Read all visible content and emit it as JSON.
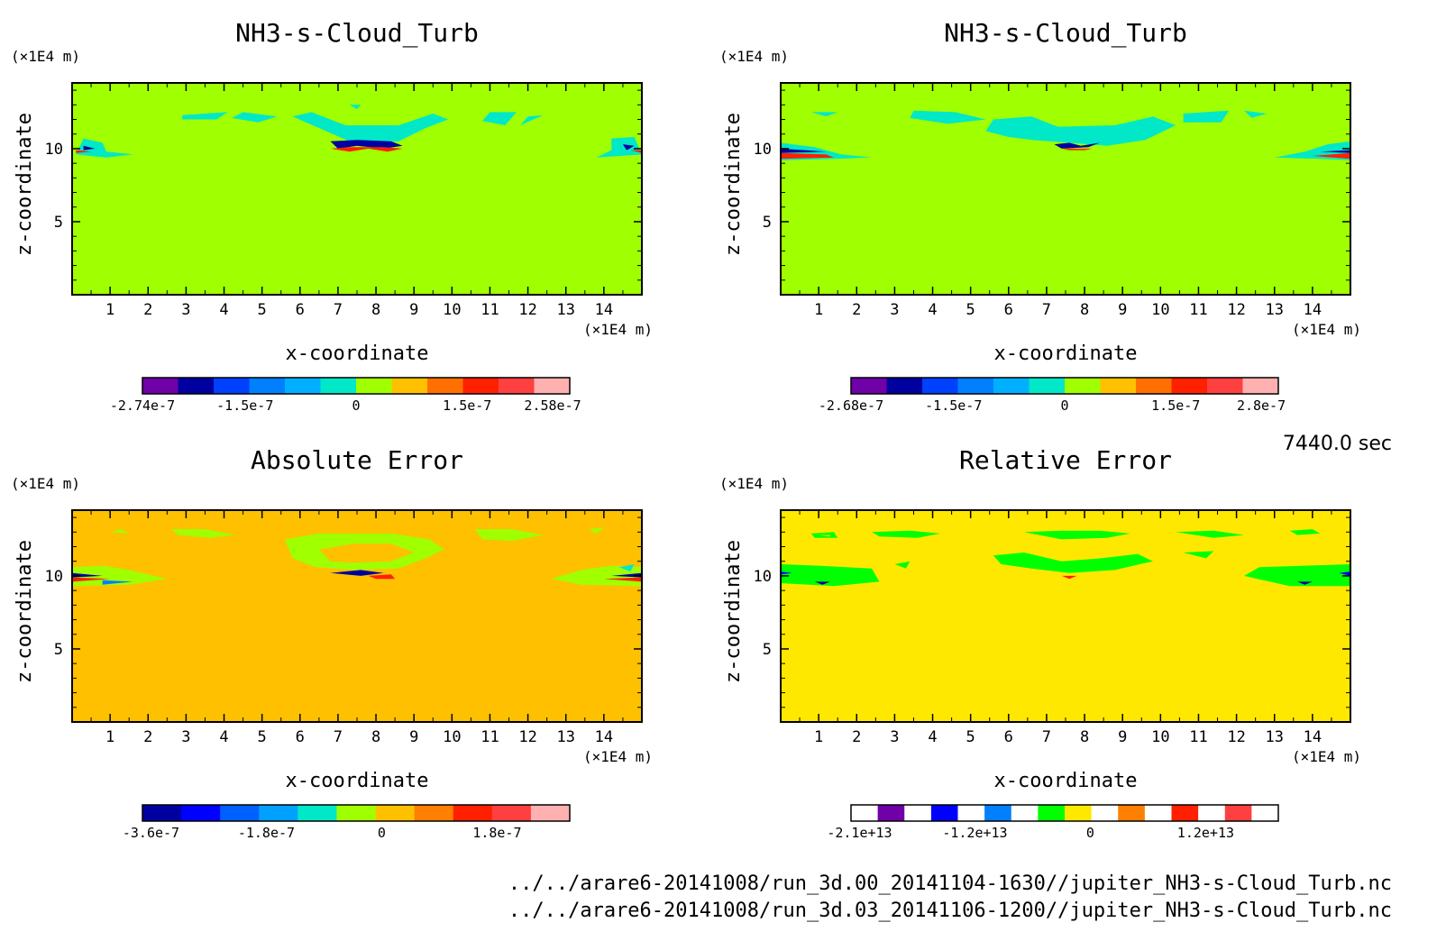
{
  "time_label": "7440.0 sec",
  "footer": {
    "file1": "../../arare6-20141008/run_3d.00_20141104-1630//jupiter_NH3-s-Cloud_Turb.nc",
    "file2": "../../arare6-20141008/run_3d.03_20141106-1200//jupiter_NH3-s-Cloud_Turb.nc"
  },
  "chart_data": [
    {
      "type": "heatmap",
      "title": "NH3-s-Cloud_Turb",
      "xlabel": "x-coordinate",
      "ylabel": "z-coordinate",
      "x_unit": "(×1E4 m)",
      "y_unit": "(×1E4 m)",
      "xlim": [
        0,
        15
      ],
      "ylim": [
        0,
        14.5
      ],
      "x_ticks": [
        "1",
        "2",
        "3",
        "4",
        "5",
        "6",
        "7",
        "8",
        "9",
        "10",
        "11",
        "12",
        "13",
        "14"
      ],
      "y_ticks": [
        "5",
        "10"
      ],
      "background_color": "#a0ff00",
      "colorbar": {
        "colors": [
          "#7000a8",
          "#0000a0",
          "#0040ff",
          "#0080ff",
          "#00b0ff",
          "#00e8c8",
          "#a0ff00",
          "#ffc000",
          "#ff7000",
          "#ff2000",
          "#ff4040",
          "#ffb0b0"
        ],
        "labels": [
          "-2.74e-7",
          "-1.5e-7",
          "0",
          "1.5e-7",
          "2.58e-7"
        ]
      }
    },
    {
      "type": "heatmap",
      "title": "NH3-s-Cloud_Turb",
      "xlabel": "x-coordinate",
      "ylabel": "z-coordinate",
      "x_unit": "(×1E4 m)",
      "y_unit": "(×1E4 m)",
      "xlim": [
        0,
        15
      ],
      "ylim": [
        0,
        14.5
      ],
      "x_ticks": [
        "1",
        "2",
        "3",
        "4",
        "5",
        "6",
        "7",
        "8",
        "9",
        "10",
        "11",
        "12",
        "13",
        "14"
      ],
      "y_ticks": [
        "5",
        "10"
      ],
      "background_color": "#a0ff00",
      "colorbar": {
        "colors": [
          "#7000a8",
          "#0000a0",
          "#0040ff",
          "#0080ff",
          "#00b0ff",
          "#00e8c8",
          "#a0ff00",
          "#ffc000",
          "#ff7000",
          "#ff2000",
          "#ff4040",
          "#ffb0b0"
        ],
        "labels": [
          "-2.68e-7",
          "-1.5e-7",
          "0",
          "1.5e-7",
          "2.8e-7"
        ]
      }
    },
    {
      "type": "heatmap",
      "title": "Absolute Error",
      "xlabel": "x-coordinate",
      "ylabel": "z-coordinate",
      "x_unit": "(×1E4 m)",
      "y_unit": "(×1E4 m)",
      "xlim": [
        0,
        15
      ],
      "ylim": [
        0,
        14.5
      ],
      "x_ticks": [
        "1",
        "2",
        "3",
        "4",
        "5",
        "6",
        "7",
        "8",
        "9",
        "10",
        "11",
        "12",
        "13",
        "14"
      ],
      "y_ticks": [
        "5",
        "10"
      ],
      "background_color": "#ffc000",
      "colorbar": {
        "colors": [
          "#0000a0",
          "#0000ff",
          "#0060ff",
          "#00a0ff",
          "#00e8c8",
          "#a0ff00",
          "#ffc000",
          "#ff8000",
          "#ff2000",
          "#ff4040",
          "#ffb0b0"
        ],
        "labels": [
          "-3.6e-7",
          "-1.8e-7",
          "0",
          "1.8e-7"
        ]
      }
    },
    {
      "type": "heatmap",
      "title": "Relative Error",
      "xlabel": "x-coordinate",
      "ylabel": "z-coordinate",
      "x_unit": "(×1E4 m)",
      "y_unit": "(×1E4 m)",
      "xlim": [
        0,
        15
      ],
      "ylim": [
        0,
        14.5
      ],
      "x_ticks": [
        "1",
        "2",
        "3",
        "4",
        "5",
        "6",
        "7",
        "8",
        "9",
        "10",
        "11",
        "12",
        "13",
        "14"
      ],
      "y_ticks": [
        "5",
        "10"
      ],
      "background_color": "#ffe800",
      "colorbar": {
        "colors": [
          "#ffffff",
          "#7000a8",
          "#ffffff",
          "#0000ff",
          "#ffffff",
          "#0080ff",
          "#ffffff",
          "#00ff00",
          "#ffe800",
          "#ffffff",
          "#ff8000",
          "#ffffff",
          "#ff2000",
          "#ffffff",
          "#ff4040",
          "#ffffff"
        ],
        "labels": [
          "-2.1e+13",
          "-1.2e+13",
          "0",
          "1.2e+13"
        ]
      }
    }
  ]
}
